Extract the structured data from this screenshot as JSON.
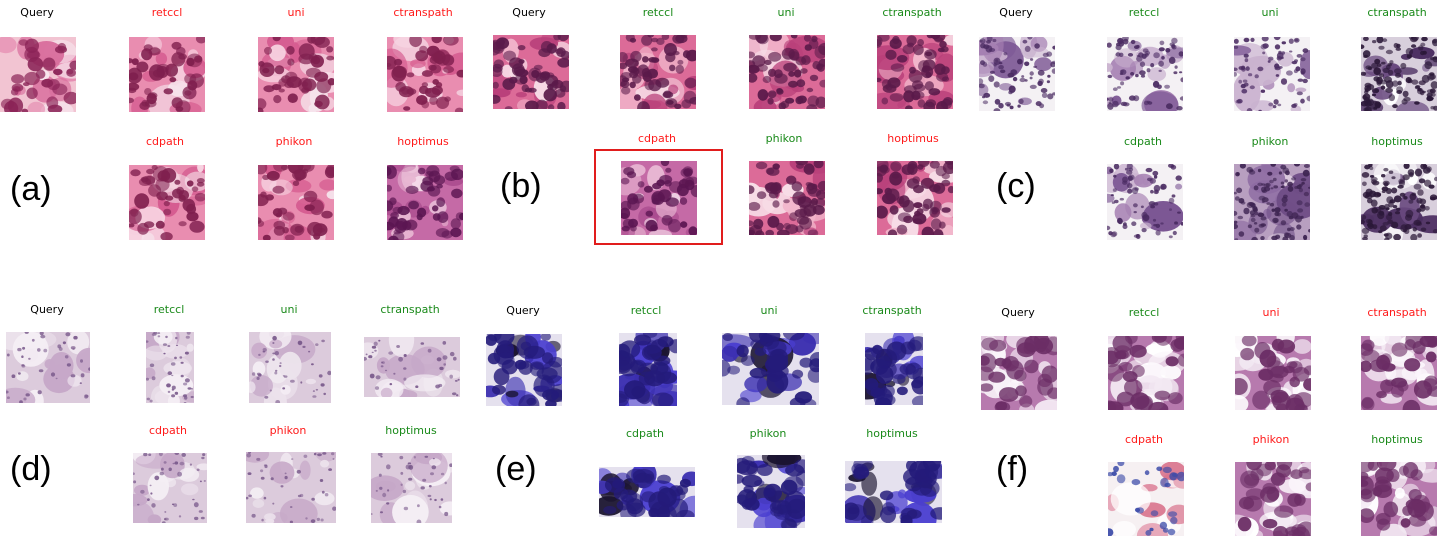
{
  "colors": {
    "match": "#1a8a1a",
    "mismatch": "#ff1a1a",
    "query": "#000000",
    "highlight": "#e11d1d"
  },
  "panels": [
    {
      "letter": "(a)",
      "tiles": [
        {
          "label": "Query",
          "status": "query",
          "style": "he-light"
        },
        {
          "label": "retccl",
          "status": "mismatch",
          "style": "he-pink"
        },
        {
          "label": "uni",
          "status": "mismatch",
          "style": "he-pink"
        },
        {
          "label": "ctranspath",
          "status": "mismatch",
          "style": "he-pink"
        },
        {
          "label": "cdpath",
          "status": "mismatch",
          "style": "he-pink"
        },
        {
          "label": "phikon",
          "status": "mismatch",
          "style": "he-pink"
        },
        {
          "label": "hoptimus",
          "status": "mismatch",
          "style": "he-purple"
        }
      ]
    },
    {
      "letter": "(b)",
      "tiles": [
        {
          "label": "Query",
          "status": "query",
          "style": "he-dense"
        },
        {
          "label": "retccl",
          "status": "match",
          "style": "he-dense"
        },
        {
          "label": "uni",
          "status": "match",
          "style": "he-dense"
        },
        {
          "label": "ctranspath",
          "status": "match",
          "style": "he-dense"
        },
        {
          "label": "cdpath",
          "status": "mismatch",
          "style": "he-purple",
          "highlighted": true
        },
        {
          "label": "phikon",
          "status": "match",
          "style": "he-dense"
        },
        {
          "label": "hoptimus",
          "status": "mismatch",
          "style": "he-dense"
        }
      ]
    },
    {
      "letter": "(c)",
      "tiles": [
        {
          "label": "Query",
          "status": "query",
          "style": "cell-sparse"
        },
        {
          "label": "retccl",
          "status": "match",
          "style": "cell-sparse"
        },
        {
          "label": "uni",
          "status": "match",
          "style": "cell-sparse"
        },
        {
          "label": "ctranspath",
          "status": "match",
          "style": "cell-dark"
        },
        {
          "label": "cdpath",
          "status": "match",
          "style": "cell-sparse"
        },
        {
          "label": "phikon",
          "status": "match",
          "style": "cell-dense"
        },
        {
          "label": "hoptimus",
          "status": "match",
          "style": "cell-dark"
        }
      ]
    },
    {
      "letter": "(d)",
      "tiles": [
        {
          "label": "Query",
          "status": "query",
          "style": "pale"
        },
        {
          "label": "retccl",
          "status": "match",
          "style": "pale"
        },
        {
          "label": "uni",
          "status": "match",
          "style": "pale"
        },
        {
          "label": "ctranspath",
          "status": "match",
          "style": "pale"
        },
        {
          "label": "cdpath",
          "status": "mismatch",
          "style": "pale"
        },
        {
          "label": "phikon",
          "status": "mismatch",
          "style": "pale"
        },
        {
          "label": "hoptimus",
          "status": "match",
          "style": "pale"
        }
      ]
    },
    {
      "letter": "(e)",
      "tiles": [
        {
          "label": "Query",
          "status": "query",
          "style": "cyto"
        },
        {
          "label": "retccl",
          "status": "match",
          "style": "cyto"
        },
        {
          "label": "uni",
          "status": "match",
          "style": "cyto"
        },
        {
          "label": "ctranspath",
          "status": "match",
          "style": "cyto"
        },
        {
          "label": "cdpath",
          "status": "match",
          "style": "cyto"
        },
        {
          "label": "phikon",
          "status": "match",
          "style": "cyto"
        },
        {
          "label": "hoptimus",
          "status": "match",
          "style": "cyto"
        }
      ]
    },
    {
      "letter": "(f)",
      "tiles": [
        {
          "label": "Query",
          "status": "query",
          "style": "fat"
        },
        {
          "label": "retccl",
          "status": "match",
          "style": "fat"
        },
        {
          "label": "uni",
          "status": "mismatch",
          "style": "fat"
        },
        {
          "label": "ctranspath",
          "status": "mismatch",
          "style": "fat"
        },
        {
          "label": "cdpath",
          "status": "mismatch",
          "style": "fat-blood"
        },
        {
          "label": "phikon",
          "status": "mismatch",
          "style": "fat"
        },
        {
          "label": "hoptimus",
          "status": "match",
          "style": "fat"
        }
      ]
    }
  ]
}
